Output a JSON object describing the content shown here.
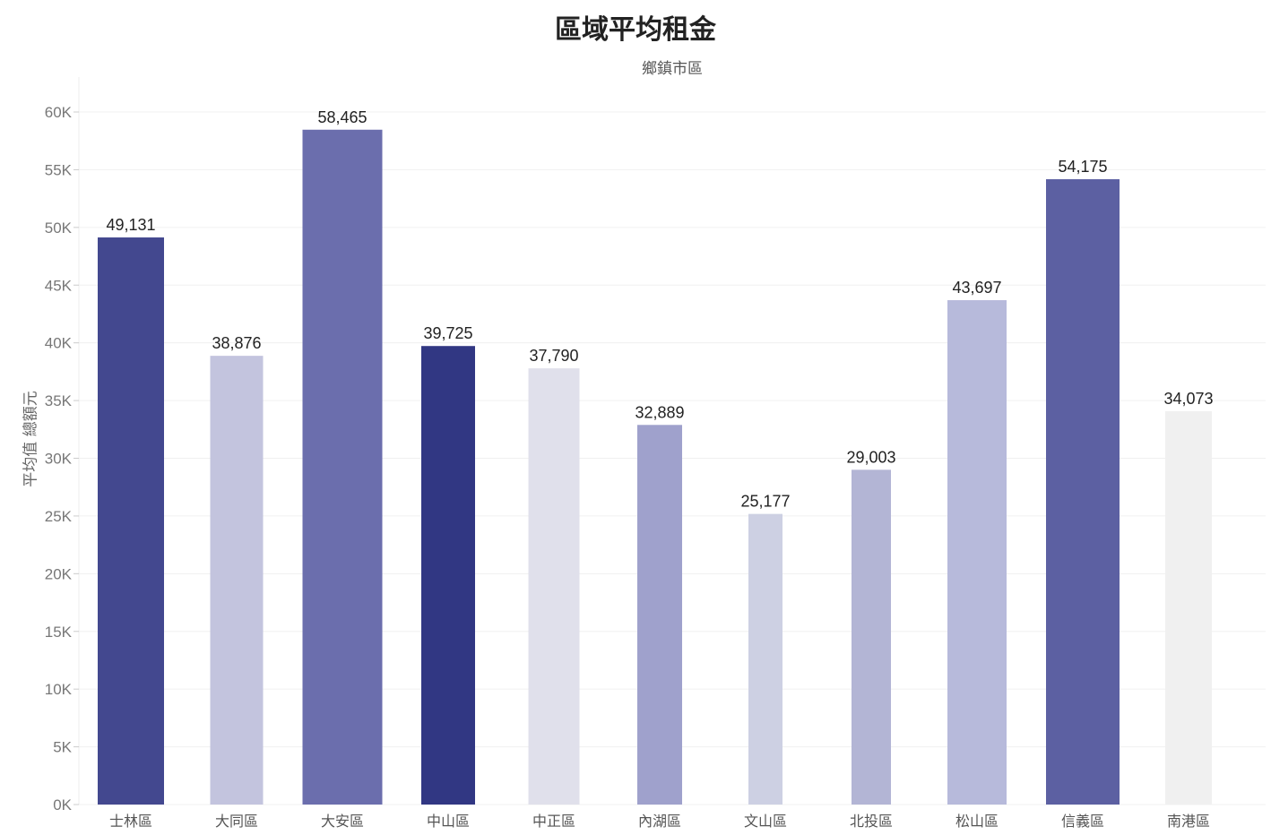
{
  "chart_data": {
    "type": "bar",
    "title": "區域平均租金",
    "column_header": "鄉鎮市區",
    "ylabel": "平均值 總額元",
    "xlabel": "",
    "ylim": [
      0,
      62000
    ],
    "yticks": [
      0,
      5000,
      10000,
      15000,
      20000,
      25000,
      30000,
      35000,
      40000,
      45000,
      50000,
      55000,
      60000
    ],
    "ytick_labels": [
      "0K",
      "5K",
      "10K",
      "15K",
      "20K",
      "25K",
      "30K",
      "35K",
      "40K",
      "45K",
      "50K",
      "55K",
      "60K"
    ],
    "grid": true,
    "categories": [
      "士林區",
      "大同區",
      "大安區",
      "中山區",
      "中正區",
      "內湖區",
      "文山區",
      "北投區",
      "松山區",
      "信義區",
      "南港區"
    ],
    "values": [
      49131,
      38876,
      58465,
      39725,
      37790,
      32889,
      25177,
      29003,
      43697,
      54175,
      34073
    ],
    "value_labels": [
      "49,131",
      "38,876",
      "58,465",
      "39,725",
      "37,790",
      "32,889",
      "25,177",
      "29,003",
      "43,697",
      "54,175",
      "34,073"
    ],
    "colors": [
      "#43488f",
      "#c3c4de",
      "#6b6ead",
      "#313783",
      "#e0e0eb",
      "#9fa1cc",
      "#cdd0e3",
      "#b3b5d5",
      "#b7badb",
      "#5c60a2",
      "#f0f0f0"
    ]
  }
}
